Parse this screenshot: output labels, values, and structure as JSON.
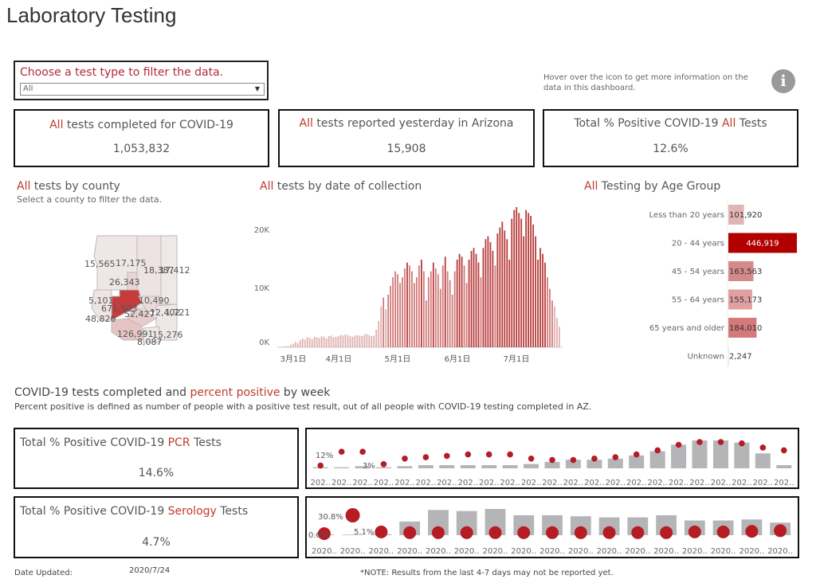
{
  "page": {
    "title": "Laboratory Testing"
  },
  "filter": {
    "label": "Choose a test type to filter the data.",
    "selected": "All"
  },
  "help": {
    "note": "Hover over the icon to get more information on the data in this dashboard.",
    "icon": "info-icon"
  },
  "kpis": [
    {
      "prefix": "All",
      "label": " tests completed for COVID-19",
      "value": "1,053,832"
    },
    {
      "prefix": "All",
      "label": " tests reported yesterday in Arizona",
      "value": "15,908"
    },
    {
      "prefix_before": "Total % Positive COVID-19 ",
      "prefix": "All",
      "label": " Tests",
      "value": "12.6%"
    }
  ],
  "county": {
    "title_prefix": "All",
    "title": " tests by county",
    "subtitle": "Select a county to filter the data.",
    "labels": [
      "15,565",
      "17,175",
      "18,387",
      "17,412",
      "26,343",
      "5,101",
      "671,503",
      "10,490",
      "48,820",
      "52,427",
      "12,402",
      "1,721",
      "126,991",
      "15,276",
      "8,087"
    ]
  },
  "by_date": {
    "title_prefix": "All",
    "title": " tests by date of collection",
    "chart_data": {
      "type": "bar",
      "y_ticks": [
        "20K",
        "10K",
        "0K"
      ],
      "x_ticks": [
        "3月1日",
        "4月1日",
        "5月1日",
        "6月1日",
        "7月1日"
      ],
      "ylim": [
        0,
        24000
      ],
      "values": [
        80,
        120,
        200,
        160,
        400,
        600,
        900,
        700,
        1200,
        1500,
        1300,
        1700,
        1600,
        1400,
        1800,
        1700,
        1600,
        1900,
        1800,
        1500,
        1900,
        2000,
        1700,
        1800,
        1900,
        2100,
        2000,
        2200,
        2100,
        1900,
        1800,
        2000,
        2100,
        2000,
        1900,
        2200,
        2300,
        2100,
        1900,
        2000,
        3000,
        4500,
        7000,
        8500,
        6500,
        9000,
        10500,
        12000,
        13000,
        12500,
        11000,
        12000,
        13500,
        14500,
        14000,
        13000,
        11000,
        12000,
        14000,
        15000,
        13000,
        8000,
        12000,
        13000,
        14500,
        13500,
        12500,
        10000,
        14000,
        15500,
        13000,
        11500,
        9000,
        13000,
        15000,
        16000,
        15500,
        14000,
        11000,
        15000,
        16500,
        17000,
        16000,
        14500,
        12000,
        17000,
        18500,
        19000,
        18000,
        16500,
        14000,
        19500,
        20500,
        21500,
        20000,
        18500,
        15000,
        22000,
        23500,
        24000,
        23000,
        22000,
        19000,
        23500,
        23000,
        22500,
        21000,
        19000,
        15000,
        17000,
        16000,
        14500,
        12000,
        10000,
        8000,
        7000,
        5000,
        3500
      ]
    }
  },
  "age": {
    "title_prefix": "All",
    "title": " Testing by Age Group",
    "chart_data": {
      "type": "bar",
      "categories": [
        "Less than 20 years",
        "20 - 44 years",
        "45 - 54 years",
        "55 - 64 years",
        "65 years and older",
        "Unknown"
      ],
      "values": [
        101920,
        446919,
        163563,
        155173,
        184010,
        2247
      ],
      "value_labels": [
        "101,920",
        "446,919",
        "163,563",
        "155,173",
        "184,010",
        "2,247"
      ],
      "colors": [
        "#e3b4b4",
        "#b20000",
        "#d58a8a",
        "#e0a0a0",
        "#d47a7a",
        "#f6e3e3"
      ]
    }
  },
  "weekly": {
    "title_a": "COVID-19 tests completed and ",
    "title_b": "percent positive",
    "title_c": " by week",
    "subtitle": "Percent positive is defined as number of people with a positive test result, out of all people with COVID-19 testing completed in AZ."
  },
  "pcr": {
    "label_a": "Total % Positive COVID-19 ",
    "label_b": "PCR",
    "label_c": " Tests",
    "value": "14.6%",
    "chart_data": {
      "type": "bar",
      "bars": [
        1,
        1,
        2,
        1,
        2,
        3,
        3,
        3,
        3,
        3,
        4,
        6,
        8,
        8,
        9,
        12,
        16,
        22,
        26,
        26,
        24,
        14,
        3
      ],
      "dots": [
        2,
        12,
        12,
        3,
        7,
        8,
        9,
        10,
        10,
        10,
        7,
        6,
        6,
        7,
        8,
        10,
        13,
        17,
        19,
        19,
        18,
        15,
        13
      ],
      "label_start": "12%",
      "label_low": "3%",
      "x_tick": "202.."
    }
  },
  "serology": {
    "label_a": "Total % Positive COVID-19 ",
    "label_b": "Serology",
    "label_c": " Tests",
    "value": "4.7%",
    "chart_data": {
      "type": "bar",
      "bars": [
        0.5,
        0.5,
        1,
        13,
        24,
        23,
        25,
        19,
        19,
        18,
        17,
        17,
        19,
        14,
        14,
        15,
        12
      ],
      "dots": [
        0,
        30.8,
        5.1,
        4,
        4,
        4,
        4,
        4,
        4,
        4,
        4,
        4,
        4,
        5,
        5,
        6,
        7
      ],
      "label_start": "30.8%",
      "label_low": "5.1%",
      "label_zero": "0.0%",
      "x_tick": "2020.."
    }
  },
  "footer": {
    "updated_label": "Date Updated:",
    "updated_value": "2020/7/24",
    "note": "*NOTE: Results from the last 4-7 days may not be reported yet."
  }
}
